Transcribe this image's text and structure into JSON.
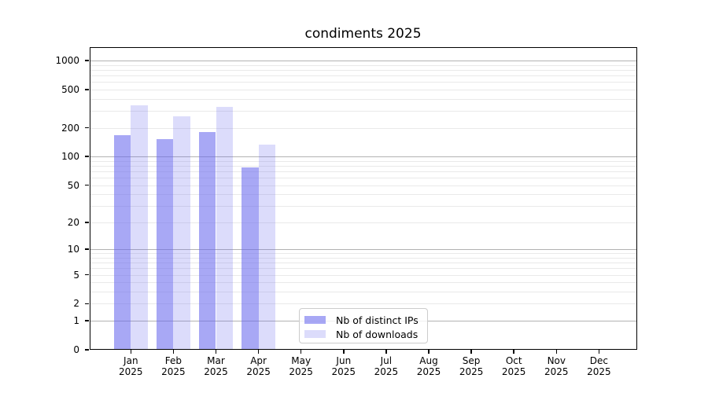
{
  "chart_data": {
    "type": "bar",
    "title": "condiments 2025",
    "categories": [
      "Jan",
      "Feb",
      "Mar",
      "Apr",
      "May",
      "Jun",
      "Jul",
      "Aug",
      "Sep",
      "Oct",
      "Nov",
      "Dec"
    ],
    "x_tick_second_line": "2025",
    "series": [
      {
        "name": "Nb of distinct IPs",
        "fill": "#6666ee",
        "fill_alpha": 0.57,
        "values": [
          166,
          153,
          180,
          77,
          0,
          0,
          0,
          0,
          0,
          0,
          0,
          0
        ]
      },
      {
        "name": "Nb of downloads",
        "fill": "#6666ee",
        "fill_alpha": 0.23,
        "values": [
          345,
          263,
          330,
          133,
          0,
          0,
          0,
          0,
          0,
          0,
          0,
          0
        ]
      }
    ],
    "yscale": "symlog",
    "ylim": [
      0,
      1400
    ],
    "yticks": [
      0,
      1,
      2,
      5,
      10,
      20,
      50,
      100,
      200,
      500,
      1000
    ],
    "grid": "horizontal",
    "legend_position": "lower-center",
    "colors": {
      "background": "#ffffff",
      "axis": "#000000",
      "major_grid": "#b2b2b2",
      "minor_grid": "#e9e9e9"
    }
  }
}
